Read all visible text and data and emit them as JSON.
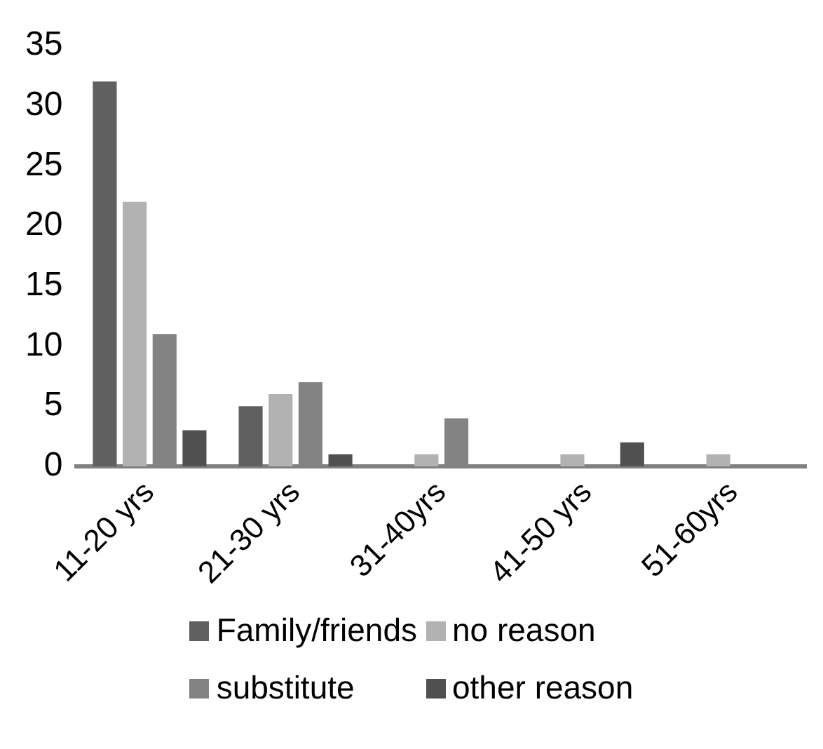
{
  "chart_data": {
    "type": "bar",
    "categories": [
      "11-20 yrs",
      "21-30 yrs",
      "31-40yrs",
      "41-50 yrs",
      "51-60yrs"
    ],
    "series": [
      {
        "name": "Family/friends",
        "color": "#606060",
        "values": [
          32,
          5,
          0,
          0,
          0
        ]
      },
      {
        "name": "no reason",
        "color": "#b2b2b2",
        "values": [
          22,
          6,
          1,
          1,
          1
        ]
      },
      {
        "name": "substitute",
        "color": "#838383",
        "values": [
          11,
          7,
          4,
          0,
          0
        ]
      },
      {
        "name": "other reason",
        "color": "#505050",
        "values": [
          3,
          1,
          0,
          2,
          0
        ]
      }
    ],
    "ylim": [
      0,
      35
    ],
    "yticks": [
      0,
      5,
      10,
      15,
      20,
      25,
      30,
      35
    ],
    "grid": false,
    "legend": "bottom"
  }
}
